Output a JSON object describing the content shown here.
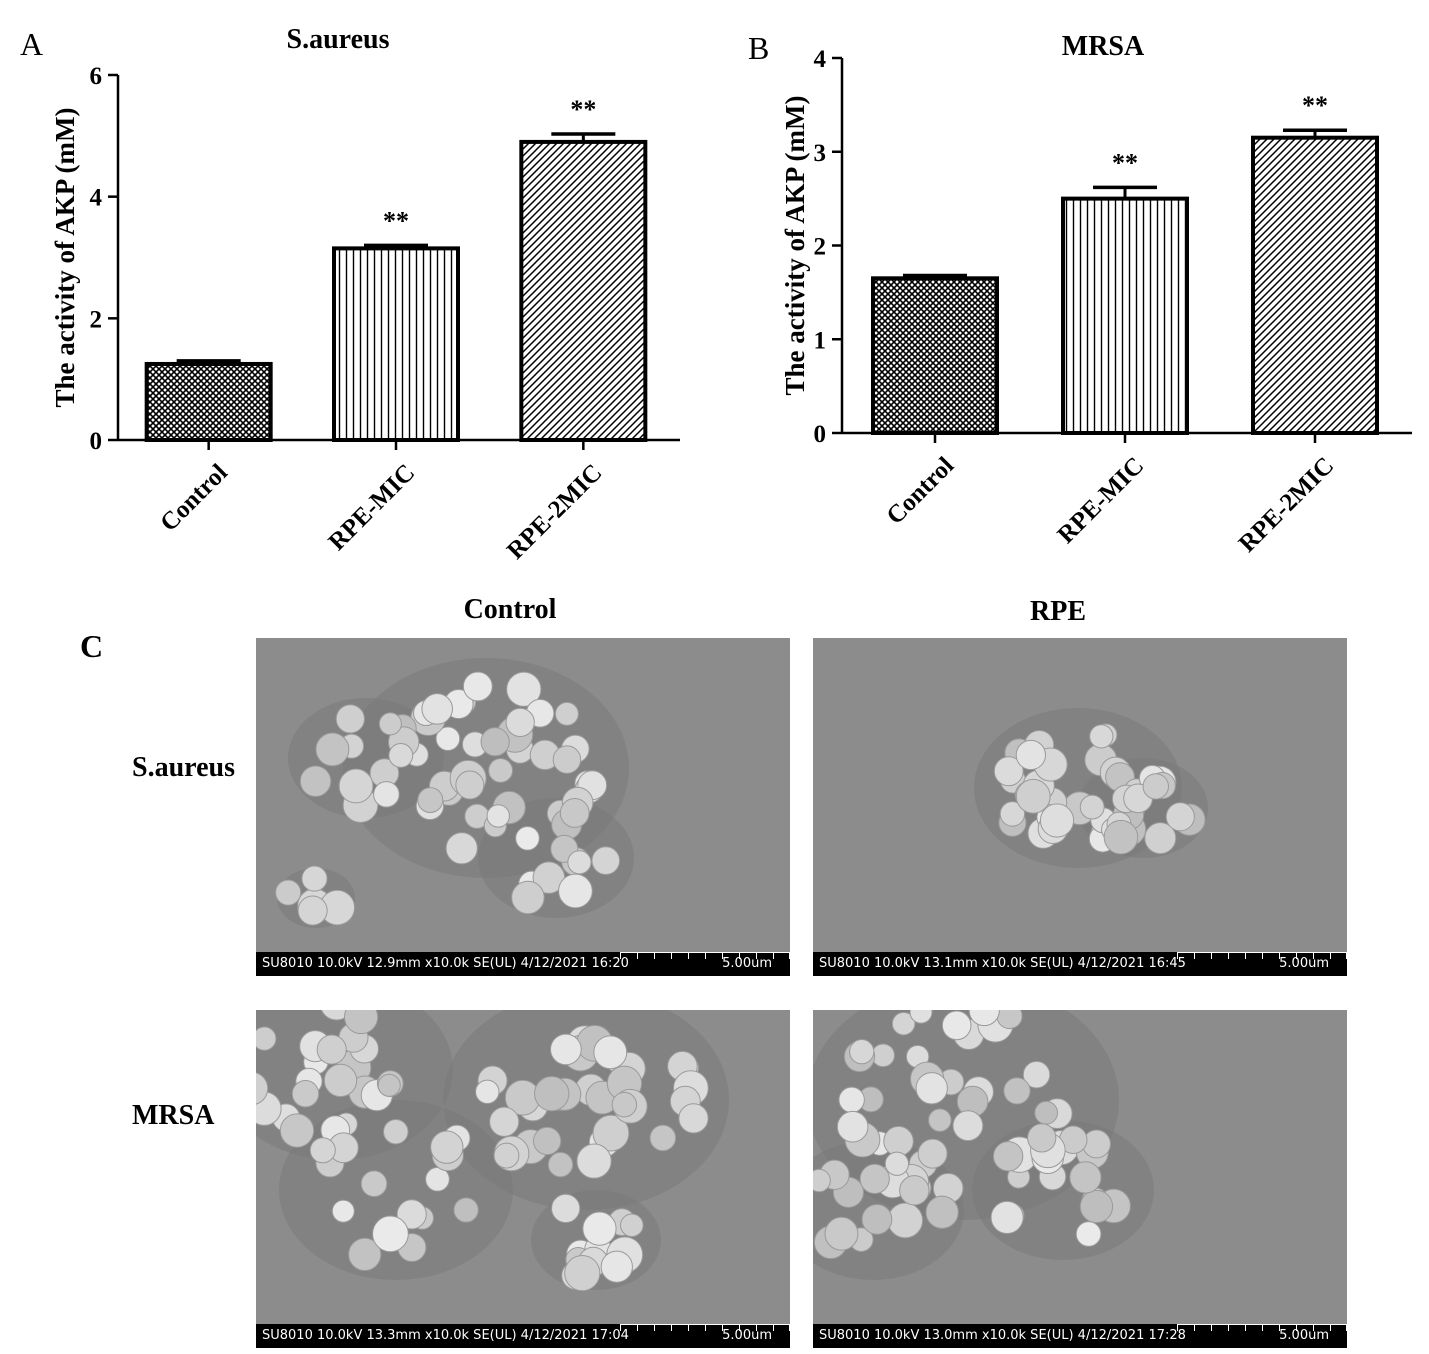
{
  "panels": {
    "a_letter": "A",
    "b_letter": "B",
    "c_letter": "C"
  },
  "chart_data": [
    {
      "type": "bar",
      "title": "S.aureus",
      "ylabel": "The activity of AKP (mM)",
      "xlabel": "",
      "categories": [
        "Control",
        "RPE-MIC",
        "RPE-2MIC"
      ],
      "values": [
        1.25,
        3.15,
        4.9
      ],
      "errors": [
        0.05,
        0.05,
        0.13
      ],
      "significance": [
        "",
        "**",
        "**"
      ],
      "patterns": [
        "crosshatch",
        "vertical",
        "diagonal"
      ],
      "ylim": [
        0,
        6
      ],
      "yticks": [
        "0",
        "2",
        "4",
        "6"
      ]
    },
    {
      "type": "bar",
      "title": "MRSA",
      "ylabel": "The activity of AKP (mM)",
      "xlabel": "",
      "categories": [
        "Control",
        "RPE-MIC",
        "RPE-2MIC"
      ],
      "values": [
        1.65,
        2.5,
        3.15
      ],
      "errors": [
        0.03,
        0.12,
        0.08
      ],
      "significance": [
        "",
        "**",
        "**"
      ],
      "patterns": [
        "crosshatch",
        "vertical",
        "diagonal"
      ],
      "ylim": [
        0,
        4
      ],
      "yticks": [
        "0",
        "1",
        "2",
        "3",
        "4"
      ]
    }
  ],
  "sem_grid": {
    "columns": [
      "Control",
      "RPE"
    ],
    "rows": [
      "S.aureus",
      "MRSA"
    ],
    "images": [
      {
        "meta": "SU8010 10.0kV 12.9mm x10.0k SE(UL) 4/12/2021 16:20",
        "scale": "5.00um"
      },
      {
        "meta": "SU8010 10.0kV 13.1mm x10.0k SE(UL) 4/12/2021 16:45",
        "scale": "5.00um"
      },
      {
        "meta": "SU8010 10.0kV 13.3mm x10.0k SE(UL) 4/12/2021 17:04",
        "scale": "5.00um"
      },
      {
        "meta": "SU8010 10.0kV 13.0mm x10.0k SE(UL) 4/12/2021 17:28",
        "scale": "5.00um"
      }
    ]
  }
}
